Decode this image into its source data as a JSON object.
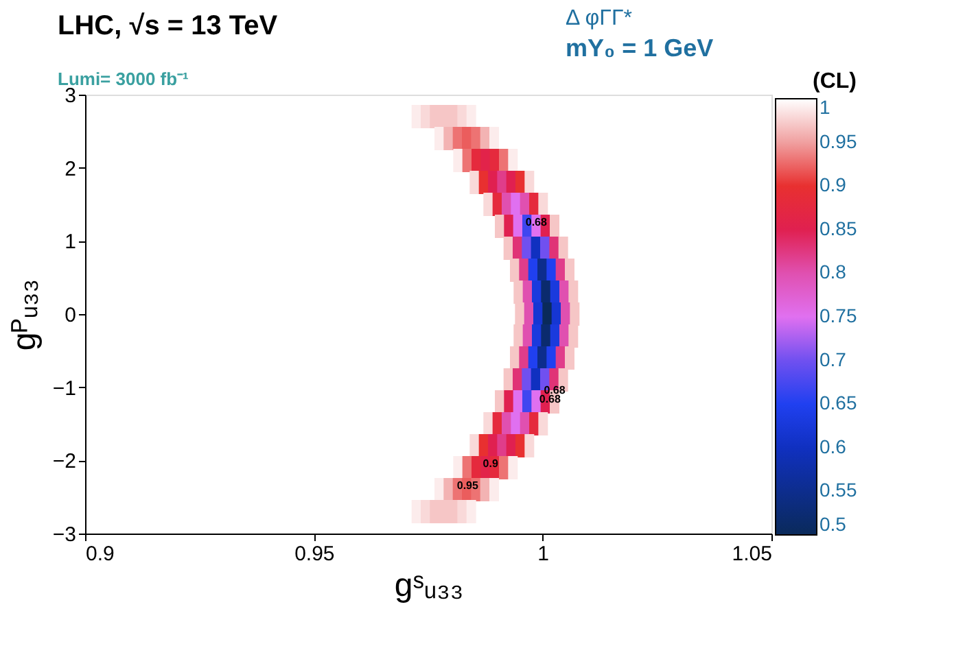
{
  "chart_data": {
    "type": "scatter",
    "title": "LHC,  √s = 13 TeV",
    "subtitle": "Lumi= 3000 fb⁻¹",
    "xlabel": "gˢᵤ₃₃",
    "ylabel": "gᴾᵤ₃₃",
    "clabel": "(CL)",
    "annotations": [
      "Δ φΓΓ*",
      "mY₀ = 1 GeV",
      {
        "text": "0.68",
        "x": 0.995,
        "y": 1.25
      },
      {
        "text": "0.68",
        "x": 0.999,
        "y": -1.05
      },
      {
        "text": "0.68",
        "x": 0.998,
        "y": -1.17
      },
      {
        "text": "0.9",
        "x": 0.985,
        "y": -2.05
      },
      {
        "text": "0.95",
        "x": 0.98,
        "y": -2.35
      }
    ],
    "marker": "square",
    "grid": false,
    "xlim": [
      0.9,
      1.05
    ],
    "xticks": [
      0.9,
      0.95,
      1,
      1.05
    ],
    "ylim": [
      -3,
      3
    ],
    "yticks": [
      -3,
      -2,
      -1,
      0,
      1,
      2,
      3
    ],
    "clim": [
      0.5,
      1
    ],
    "cticks": [
      0.5,
      0.55,
      0.6,
      0.65,
      0.7,
      0.75,
      0.8,
      0.85,
      0.9,
      0.95,
      1
    ],
    "x": [
      0.9724,
      0.9744,
      0.9764,
      0.9784,
      0.9804,
      0.9824,
      0.9844,
      0.9774,
      0.9794,
      0.9814,
      0.9834,
      0.9854,
      0.9874,
      0.9894,
      0.9815,
      0.9835,
      0.9855,
      0.9875,
      0.9895,
      0.9915,
      0.9935,
      0.9851,
      0.9871,
      0.9891,
      0.9911,
      0.9931,
      0.9951,
      0.9971,
      0.9881,
      0.9901,
      0.9921,
      0.9941,
      0.9961,
      0.9981,
      1.0001,
      0.9906,
      0.9926,
      0.9946,
      0.9966,
      0.9986,
      1.0006,
      1.0026,
      0.9925,
      0.9945,
      0.9965,
      0.9985,
      1.0005,
      1.0025,
      1.0045,
      0.9939,
      0.9959,
      0.9979,
      0.9999,
      1.0019,
      1.0039,
      1.0059,
      0.9947,
      0.9967,
      0.9987,
      1.0007,
      1.0027,
      1.0047,
      1.0067,
      0.995,
      0.997,
      0.999,
      1.001,
      1.003,
      1.005,
      1.007,
      0.9947,
      0.9967,
      0.9987,
      1.0007,
      1.0027,
      1.0047,
      1.0067,
      0.9939,
      0.9959,
      0.9979,
      0.9999,
      1.0019,
      1.0039,
      1.0059,
      0.9925,
      0.9945,
      0.9965,
      0.9985,
      1.0005,
      1.0025,
      1.0045,
      0.9906,
      0.9926,
      0.9946,
      0.9966,
      0.9986,
      1.0006,
      1.0026,
      0.9881,
      0.9901,
      0.9921,
      0.9941,
      0.9961,
      0.9981,
      1.0001,
      0.9851,
      0.9871,
      0.9891,
      0.9911,
      0.9931,
      0.9951,
      0.9971,
      0.9815,
      0.9835,
      0.9855,
      0.9875,
      0.9895,
      0.9915,
      0.9935,
      0.9774,
      0.9794,
      0.9814,
      0.9834,
      0.9854,
      0.9874,
      0.9894,
      0.9724,
      0.9744,
      0.9764,
      0.9784,
      0.9804,
      0.9824,
      0.9844
    ],
    "values": [
      2.7,
      2.7,
      2.7,
      2.7,
      2.7,
      2.7,
      2.7,
      2.4,
      2.4,
      2.4,
      2.4,
      2.4,
      2.4,
      2.4,
      2.1,
      2.1,
      2.1,
      2.1,
      2.1,
      2.1,
      2.1,
      1.8,
      1.8,
      1.8,
      1.8,
      1.8,
      1.8,
      1.8,
      1.5,
      1.5,
      1.5,
      1.5,
      1.5,
      1.5,
      1.5,
      1.2,
      1.2,
      1.2,
      1.2,
      1.2,
      1.2,
      1.2,
      0.9,
      0.9,
      0.9,
      0.9,
      0.9,
      0.9,
      0.9,
      0.6,
      0.6,
      0.6,
      0.6,
      0.6,
      0.6,
      0.6,
      0.3,
      0.3,
      0.3,
      0.3,
      0.3,
      0.3,
      0.3,
      0,
      0,
      0,
      0,
      0,
      0,
      0,
      -0.3,
      -0.3,
      -0.3,
      -0.3,
      -0.3,
      -0.3,
      -0.3,
      -0.6,
      -0.6,
      -0.6,
      -0.6,
      -0.6,
      -0.6,
      -0.6,
      -0.9,
      -0.9,
      -0.9,
      -0.9,
      -0.9,
      -0.9,
      -0.9,
      -1.2,
      -1.2,
      -1.2,
      -1.2,
      -1.2,
      -1.2,
      -1.2,
      -1.5,
      -1.5,
      -1.5,
      -1.5,
      -1.5,
      -1.5,
      -1.5,
      -1.8,
      -1.8,
      -1.8,
      -1.8,
      -1.8,
      -1.8,
      -1.8,
      -2.1,
      -2.1,
      -2.1,
      -2.1,
      -2.1,
      -2.1,
      -2.1,
      -2.4,
      -2.4,
      -2.4,
      -2.4,
      -2.4,
      -2.4,
      -2.4,
      -2.7,
      -2.7,
      -2.7,
      -2.7,
      -2.7,
      -2.7,
      -2.7
    ],
    "cvalues": [
      0.99,
      0.98,
      0.97,
      0.97,
      0.97,
      0.98,
      0.99,
      0.99,
      0.96,
      0.93,
      0.92,
      0.93,
      0.96,
      0.99,
      0.99,
      0.93,
      0.88,
      0.86,
      0.88,
      0.93,
      0.99,
      0.98,
      0.9,
      0.85,
      0.82,
      0.85,
      0.9,
      0.98,
      0.98,
      0.88,
      0.8,
      0.75,
      0.8,
      0.88,
      0.98,
      0.97,
      0.85,
      0.75,
      0.67,
      0.75,
      0.85,
      0.97,
      0.97,
      0.83,
      0.7,
      0.6,
      0.7,
      0.83,
      0.97,
      0.97,
      0.82,
      0.65,
      0.55,
      0.65,
      0.82,
      0.97,
      0.97,
      0.8,
      0.63,
      0.52,
      0.63,
      0.8,
      0.97,
      0.97,
      0.8,
      0.62,
      0.5,
      0.62,
      0.8,
      0.97,
      0.97,
      0.8,
      0.63,
      0.52,
      0.63,
      0.8,
      0.97,
      0.97,
      0.82,
      0.65,
      0.55,
      0.65,
      0.82,
      0.97,
      0.97,
      0.83,
      0.7,
      0.6,
      0.7,
      0.83,
      0.97,
      0.97,
      0.85,
      0.75,
      0.67,
      0.75,
      0.85,
      0.97,
      0.98,
      0.88,
      0.8,
      0.75,
      0.8,
      0.88,
      0.98,
      0.98,
      0.9,
      0.85,
      0.82,
      0.85,
      0.9,
      0.98,
      0.99,
      0.93,
      0.88,
      0.86,
      0.88,
      0.93,
      0.99,
      0.99,
      0.96,
      0.93,
      0.92,
      0.93,
      0.96,
      0.99,
      0.99,
      0.98,
      0.97,
      0.97,
      0.97,
      0.98,
      0.99
    ]
  }
}
